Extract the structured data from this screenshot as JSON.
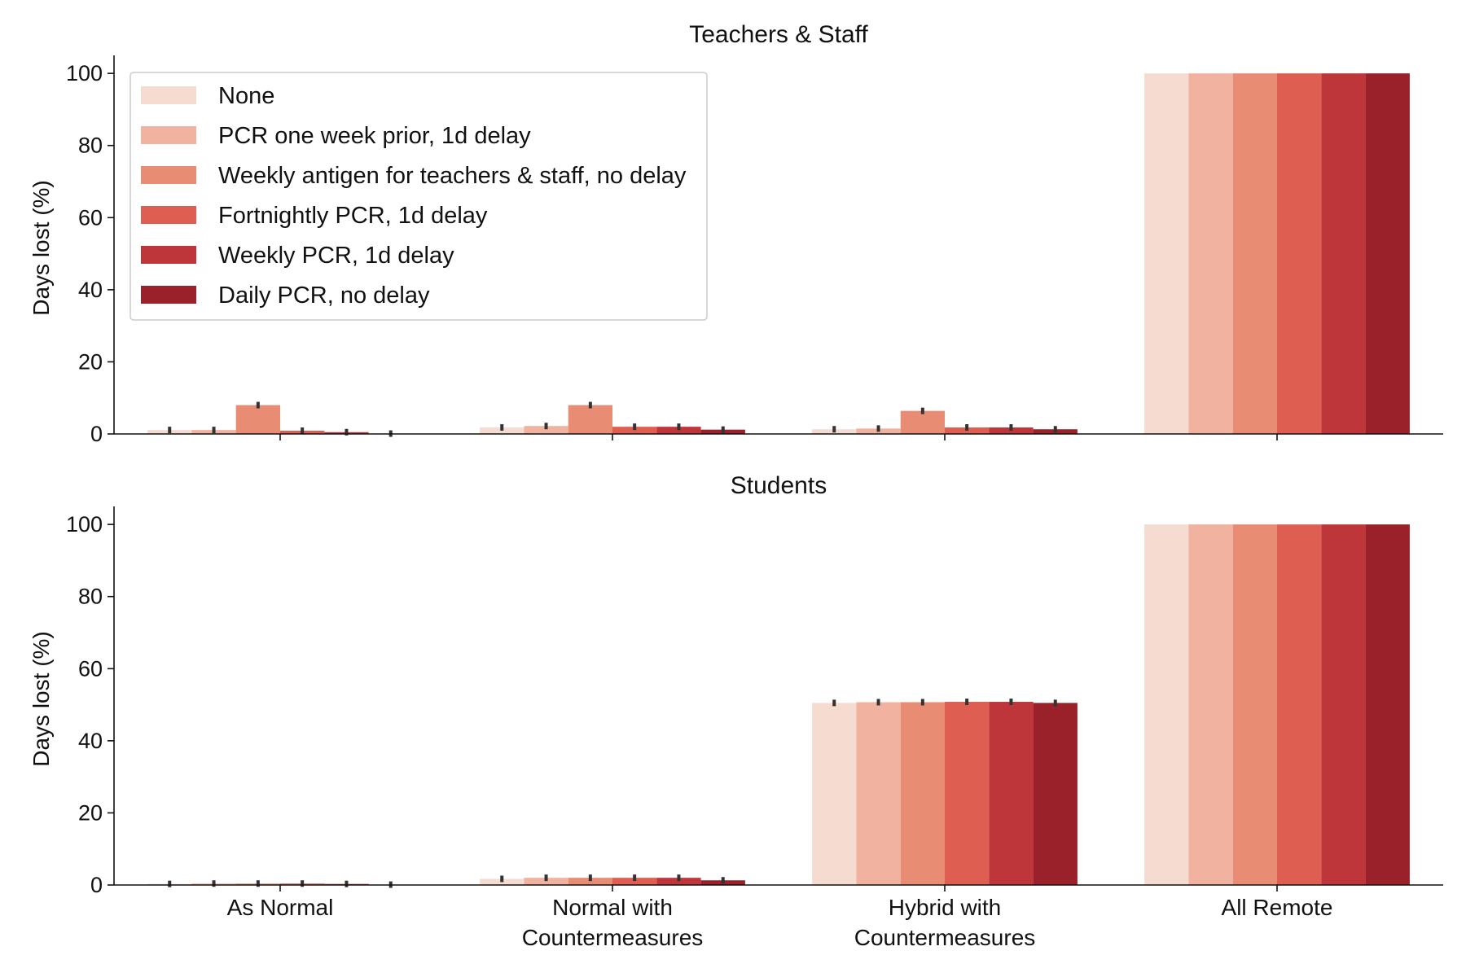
{
  "chart_data": {
    "type": "bar",
    "categories": [
      [
        "As Normal"
      ],
      [
        "Normal with",
        "Countermeasures"
      ],
      [
        "Hybrid with",
        "Countermeasures"
      ],
      [
        "All Remote"
      ]
    ],
    "ylabel": "Days lost (%)",
    "ylim": [
      0,
      105
    ],
    "yticks": [
      "0",
      "20",
      "40",
      "60",
      "80",
      "100"
    ],
    "legend": {
      "placement": "upper-left",
      "entries": [
        "None",
        "PCR one week prior, 1d delay",
        "Weekly antigen for teachers & staff, no delay",
        "Fortnightly PCR, 1d delay",
        "Weekly PCR, 1d delay",
        "Daily PCR, no delay"
      ]
    },
    "colors": [
      "#f6dcd0",
      "#f1b39f",
      "#e88c74",
      "#de5f51",
      "#bf363a",
      "#9a2129"
    ],
    "panels": [
      {
        "title": "Teachers & Staff",
        "series": [
          {
            "name": "None",
            "values": [
              1.1,
              1.8,
              1.3,
              100
            ]
          },
          {
            "name": "PCR one week prior, 1d delay",
            "values": [
              1.1,
              2.2,
              1.5,
              100
            ]
          },
          {
            "name": "Weekly antigen for teachers & staff, no delay",
            "values": [
              8.0,
              8.0,
              6.4,
              100
            ]
          },
          {
            "name": "Fortnightly PCR, 1d delay",
            "values": [
              0.9,
              2.0,
              1.8,
              100
            ]
          },
          {
            "name": "Weekly PCR, 1d delay",
            "values": [
              0.5,
              2.0,
              1.8,
              100
            ]
          },
          {
            "name": "Daily PCR, no delay",
            "values": [
              0.1,
              1.2,
              1.3,
              100
            ]
          }
        ]
      },
      {
        "title": "Students",
        "series": [
          {
            "name": "None",
            "values": [
              0.3,
              1.7,
              50.5,
              100
            ]
          },
          {
            "name": "PCR one week prior, 1d delay",
            "values": [
              0.4,
              2.0,
              50.7,
              100
            ]
          },
          {
            "name": "Weekly antigen for teachers & staff, no delay",
            "values": [
              0.4,
              2.0,
              50.7,
              100
            ]
          },
          {
            "name": "Fortnightly PCR, 1d delay",
            "values": [
              0.4,
              2.0,
              50.8,
              100
            ]
          },
          {
            "name": "Weekly PCR, 1d delay",
            "values": [
              0.3,
              2.0,
              50.8,
              100
            ]
          },
          {
            "name": "Daily PCR, no delay",
            "values": [
              0.1,
              1.3,
              50.5,
              100
            ]
          }
        ]
      }
    ]
  }
}
